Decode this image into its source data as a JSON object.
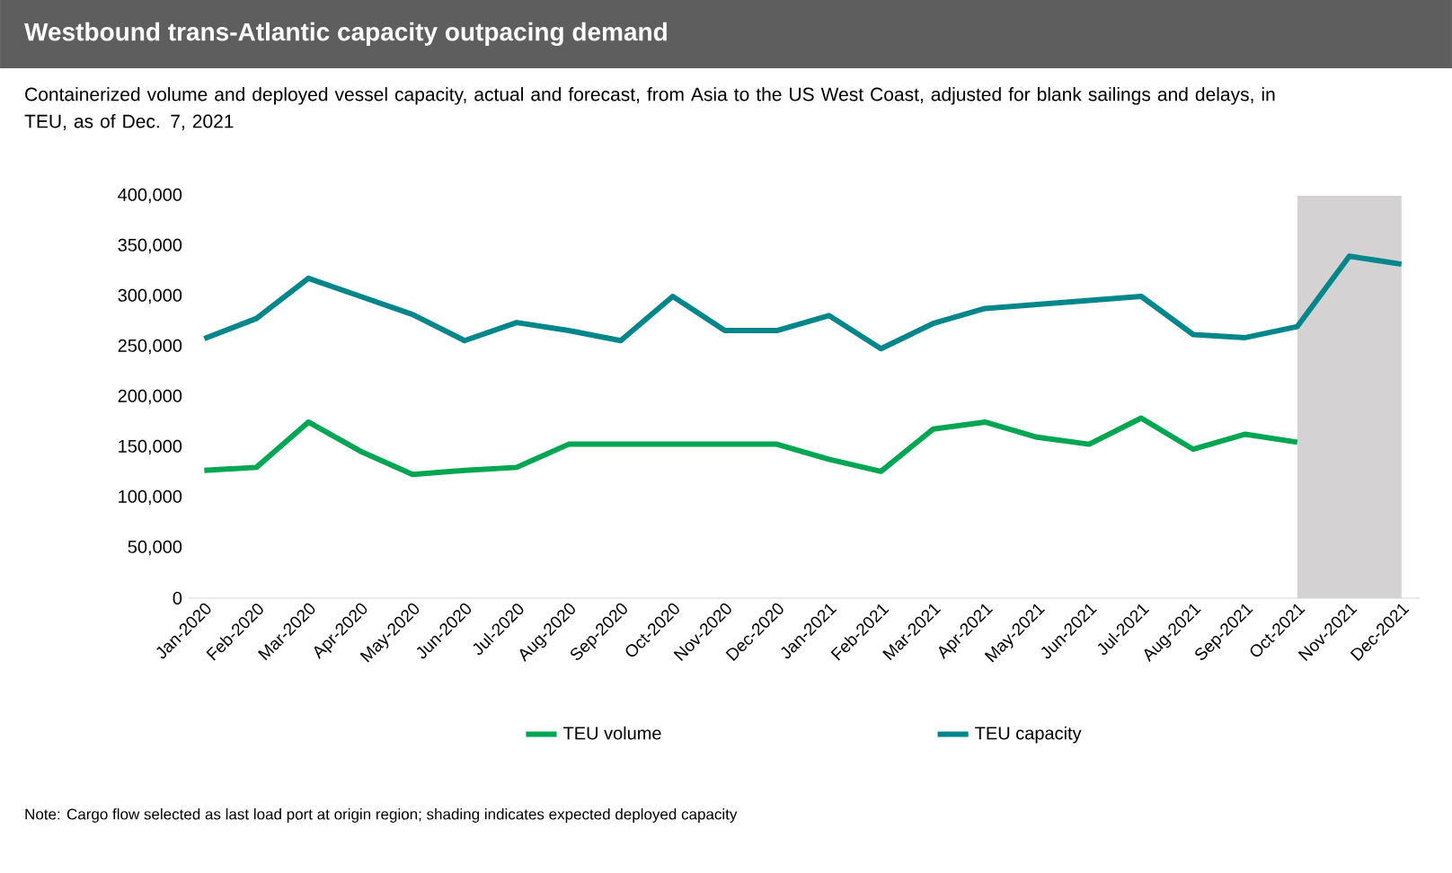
{
  "chart_data": {
    "type": "line",
    "title": "Westbound trans-Atlantic capacity outpacing demand",
    "subtitle": "Containerized volume and deployed vessel capacity, actual and forecast, from Asia to the US West Coast, adjusted for blank sailings and delays, in TEU, as of Dec. 7, 2021",
    "categories": [
      "Jan-2020",
      "Feb-2020",
      "Mar-2020",
      "Apr-2020",
      "May-2020",
      "Jun-2020",
      "Jul-2020",
      "Aug-2020",
      "Sep-2020",
      "Oct-2020",
      "Nov-2020",
      "Dec-2020",
      "Jan-2021",
      "Feb-2021",
      "Mar-2021",
      "Apr-2021",
      "May-2021",
      "Jun-2021",
      "Jul-2021",
      "Aug-2021",
      "Sep-2021",
      "Oct-2021",
      "Nov-2021",
      "Dec-2021"
    ],
    "series": [
      {
        "name": "TEU volume",
        "color": "#00a651",
        "values": [
          127000,
          130000,
          175000,
          146000,
          123000,
          127000,
          130000,
          153000,
          153000,
          153000,
          153000,
          153000,
          138000,
          126000,
          168000,
          175000,
          160000,
          153000,
          179000,
          148000,
          163000,
          155000,
          null,
          null
        ]
      },
      {
        "name": "TEU capacity",
        "color": "#00868b",
        "values": [
          258000,
          278000,
          318000,
          300000,
          282000,
          256000,
          274000,
          266000,
          256000,
          300000,
          266000,
          266000,
          281000,
          248000,
          273000,
          288000,
          292000,
          296000,
          300000,
          262000,
          259000,
          270000,
          340000,
          332000
        ]
      }
    ],
    "ylim": [
      0,
      400000
    ],
    "yticks": [
      {
        "value": 0,
        "label": "0"
      },
      {
        "value": 50000,
        "label": "50,000"
      },
      {
        "value": 100000,
        "label": "100,000"
      },
      {
        "value": 150000,
        "label": "150,000"
      },
      {
        "value": 200000,
        "label": "200,000"
      },
      {
        "value": 250000,
        "label": "250,000"
      },
      {
        "value": 300000,
        "label": "300,000"
      },
      {
        "value": 350000,
        "label": "350,000"
      },
      {
        "value": 400000,
        "label": "400,000"
      }
    ],
    "bands": [
      {
        "axis": "x",
        "from": "Oct-2021",
        "to": "Dec-2021",
        "color": "#d4d2d3"
      }
    ],
    "legend": "bottom",
    "grid": false,
    "line_style": "solid",
    "marker": "none",
    "annotations": [
      "Note: Cargo flow selected as last load port at origin region; shading indicates expected deployed capacity"
    ]
  }
}
